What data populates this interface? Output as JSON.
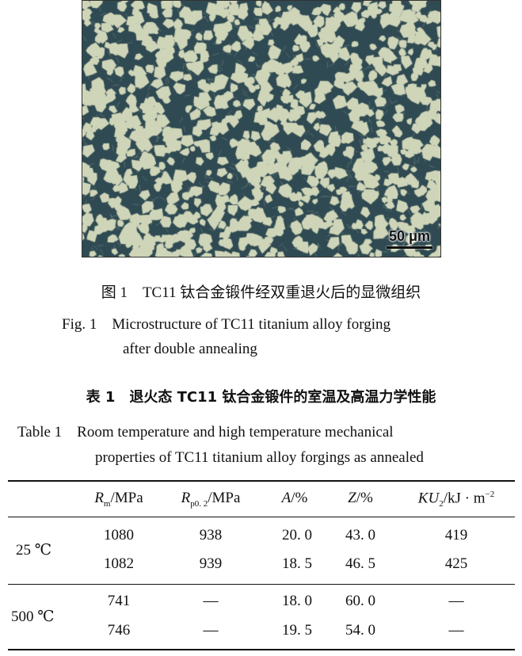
{
  "figure": {
    "scale_bar": "50 μm",
    "caption_cn": "图 1　TC11 钛合金锻件经双重退火后的显微组织",
    "caption_en_line1": "Fig. 1　Microstructure of TC11 titanium alloy forging",
    "caption_en_line2": "after double annealing",
    "colors": {
      "alpha_phase": "#cfd5b8",
      "beta_matrix": "#2f4a52"
    }
  },
  "table": {
    "title_cn": "表 1　退火态 TC11 钛合金锻件的室温及高温力学性能",
    "title_en_line1": "Table 1　Room temperature and high temperature mechanical",
    "title_en_line2": "properties of TC11 titanium alloy forgings as annealed",
    "headers": {
      "rm": {
        "sym": "R",
        "sub": "m",
        "unit": "/MPa"
      },
      "rp": {
        "sym": "R",
        "sub": "p0. 2",
        "unit": "/MPa"
      },
      "a": {
        "sym": "A",
        "unit": "/%"
      },
      "z": {
        "sym": "Z",
        "unit": "/%"
      },
      "ku": {
        "sym": "KU",
        "sub": "2",
        "unit": "/kJ · m",
        "sup": "−2"
      }
    },
    "groups": [
      {
        "label": "25 ℃",
        "rows": [
          [
            "1080",
            "938",
            "20. 0",
            "43. 0",
            "419"
          ],
          [
            "1082",
            "939",
            "18. 5",
            "46. 5",
            "425"
          ]
        ]
      },
      {
        "label": "500 ℃",
        "rows": [
          [
            "741",
            "—",
            "18. 0",
            "60. 0",
            "—"
          ],
          [
            "746",
            "—",
            "19. 5",
            "54. 0",
            "—"
          ]
        ]
      }
    ]
  }
}
